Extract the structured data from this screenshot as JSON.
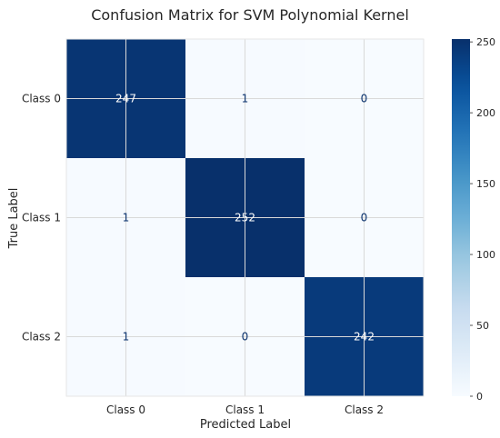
{
  "chart_data": {
    "type": "heatmap",
    "title": "Confusion Matrix for SVM Polynomial Kernel",
    "xlabel": "Predicted Label",
    "ylabel": "True Label",
    "x_categories": [
      "Class 0",
      "Class 1",
      "Class 2"
    ],
    "y_categories": [
      "Class 0",
      "Class 1",
      "Class 2"
    ],
    "matrix": [
      [
        247,
        1,
        0
      ],
      [
        1,
        252,
        0
      ],
      [
        1,
        0,
        242
      ]
    ],
    "colorbar": {
      "min": 0,
      "max": 252,
      "ticks": [
        0,
        50,
        100,
        150,
        200,
        250
      ],
      "colormap": "Blues",
      "low_color": "#f7fbff",
      "high_color": "#08306b"
    },
    "grid": true,
    "text_color_dark_cell": "#ffffff",
    "text_color_light_cell": "#08306b"
  }
}
